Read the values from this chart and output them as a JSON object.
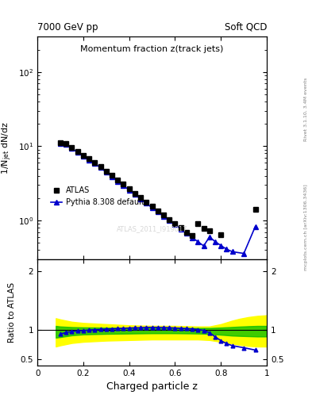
{
  "title_top_left": "7000 GeV pp",
  "title_top_right": "Soft QCD",
  "main_title": "Momentum fraction z(track jets)",
  "xlabel": "Charged particle z",
  "ylabel_main": "1/N$_{jet}$ dN/dz",
  "ylabel_ratio": "Ratio to ATLAS",
  "right_label_top": "Rivet 3.1.10, 3.4M events",
  "right_label_bottom": "mcplots.cern.ch [arXiv:1306.3436]",
  "watermark": "ATLAS_2011_I919017",
  "atlas_x": [
    0.1,
    0.125,
    0.15,
    0.175,
    0.2,
    0.225,
    0.25,
    0.275,
    0.3,
    0.325,
    0.35,
    0.375,
    0.4,
    0.425,
    0.45,
    0.475,
    0.5,
    0.525,
    0.55,
    0.575,
    0.6,
    0.625,
    0.65,
    0.675,
    0.7,
    0.725,
    0.75,
    0.8,
    0.95
  ],
  "atlas_y": [
    11.2,
    10.8,
    9.5,
    8.5,
    7.6,
    6.8,
    6.0,
    5.3,
    4.6,
    4.05,
    3.52,
    3.08,
    2.68,
    2.33,
    2.03,
    1.77,
    1.55,
    1.35,
    1.18,
    1.03,
    0.9,
    0.8,
    0.7,
    0.62,
    0.9,
    0.78,
    0.72,
    0.65,
    1.4
  ],
  "pythia_x": [
    0.1,
    0.125,
    0.15,
    0.175,
    0.2,
    0.225,
    0.25,
    0.275,
    0.3,
    0.325,
    0.35,
    0.375,
    0.4,
    0.425,
    0.45,
    0.475,
    0.5,
    0.525,
    0.55,
    0.575,
    0.6,
    0.625,
    0.65,
    0.675,
    0.7,
    0.725,
    0.75,
    0.775,
    0.8,
    0.825,
    0.85,
    0.9,
    0.95
  ],
  "pythia_y": [
    11.0,
    10.6,
    9.3,
    8.3,
    7.35,
    6.55,
    5.82,
    5.15,
    4.47,
    3.9,
    3.38,
    2.95,
    2.57,
    2.24,
    1.95,
    1.7,
    1.49,
    1.3,
    1.14,
    1.0,
    0.876,
    0.768,
    0.672,
    0.59,
    0.517,
    0.455,
    0.6,
    0.52,
    0.46,
    0.41,
    0.38,
    0.36,
    0.83
  ],
  "ratio_x": [
    0.1,
    0.125,
    0.15,
    0.175,
    0.2,
    0.225,
    0.25,
    0.275,
    0.3,
    0.325,
    0.35,
    0.375,
    0.4,
    0.425,
    0.45,
    0.475,
    0.5,
    0.525,
    0.55,
    0.575,
    0.6,
    0.625,
    0.65,
    0.675,
    0.7,
    0.725,
    0.75,
    0.775,
    0.8,
    0.825,
    0.85,
    0.9,
    0.95
  ],
  "ratio_y": [
    0.93,
    0.96,
    0.975,
    0.985,
    0.99,
    1.0,
    1.005,
    1.01,
    1.015,
    1.02,
    1.025,
    1.03,
    1.035,
    1.038,
    1.04,
    1.045,
    1.045,
    1.045,
    1.043,
    1.04,
    1.035,
    1.03,
    1.025,
    1.018,
    1.008,
    0.995,
    0.955,
    0.885,
    0.82,
    0.77,
    0.735,
    0.7,
    0.66
  ],
  "band_yellow_x": [
    0.08,
    0.1,
    0.15,
    0.2,
    0.3,
    0.4,
    0.5,
    0.6,
    0.7,
    0.75,
    0.8,
    0.85,
    0.88,
    0.92,
    0.96,
    1.0
  ],
  "band_yellow_low": [
    0.72,
    0.74,
    0.78,
    0.8,
    0.82,
    0.83,
    0.84,
    0.84,
    0.84,
    0.83,
    0.8,
    0.77,
    0.75,
    0.73,
    0.72,
    0.72
  ],
  "band_yellow_high": [
    1.2,
    1.18,
    1.14,
    1.12,
    1.1,
    1.08,
    1.07,
    1.07,
    1.06,
    1.06,
    1.1,
    1.16,
    1.19,
    1.22,
    1.24,
    1.25
  ],
  "band_green_x": [
    0.08,
    0.1,
    0.15,
    0.2,
    0.3,
    0.4,
    0.5,
    0.6,
    0.7,
    0.75,
    0.8,
    0.85,
    0.88,
    0.92,
    0.96,
    1.0
  ],
  "band_green_low": [
    0.87,
    0.88,
    0.91,
    0.925,
    0.935,
    0.94,
    0.945,
    0.945,
    0.94,
    0.935,
    0.92,
    0.905,
    0.9,
    0.895,
    0.89,
    0.89
  ],
  "band_green_high": [
    1.07,
    1.06,
    1.05,
    1.045,
    1.04,
    1.038,
    1.036,
    1.035,
    1.035,
    1.035,
    1.042,
    1.052,
    1.058,
    1.065,
    1.07,
    1.07
  ],
  "color_atlas": "#000000",
  "color_pythia": "#0000cc",
  "color_yellow": "#ffff00",
  "color_green": "#00bb00",
  "xlim": [
    0.0,
    1.0
  ],
  "ylim_main": [
    0.3,
    300
  ],
  "ylim_ratio": [
    0.4,
    2.2
  ]
}
